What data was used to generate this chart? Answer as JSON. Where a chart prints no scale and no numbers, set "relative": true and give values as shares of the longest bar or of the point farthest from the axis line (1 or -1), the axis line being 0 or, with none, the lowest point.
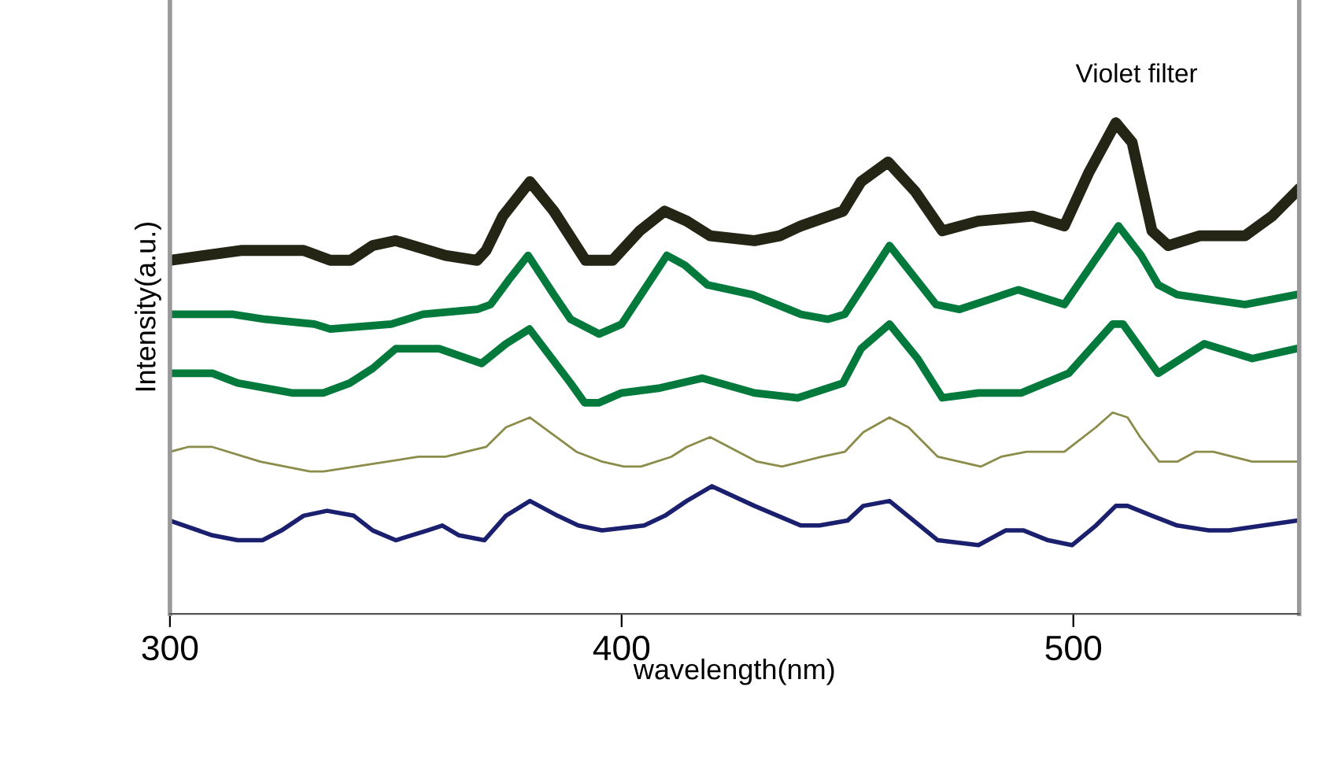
{
  "chart_data": {
    "type": "line",
    "xlabel": "wavelength(nm)",
    "ylabel": "Intensity(a.u.)",
    "annotations": [
      "Violet filter"
    ],
    "relative": true,
    "xlim": [
      300,
      550
    ],
    "xticks": [
      300,
      400,
      500
    ],
    "grid": false,
    "marker": "none",
    "line_style": "solid",
    "tick_labels": "x",
    "series": [
      {
        "color": "#252515",
        "x": [
          300,
          315.7,
          329.6,
          335.5,
          340,
          344.9,
          350,
          361,
          368,
          370,
          373.7,
          379.7,
          385,
          392,
          398,
          404,
          409.5,
          414.4,
          419.6,
          429.4,
          435,
          439.7,
          449,
          453,
          459,
          465,
          471,
          479,
          491,
          498,
          503.5,
          509.4,
          513,
          517.4,
          521,
          528,
          538,
          544,
          549.4
        ],
        "values": [
          0.72,
          0.74,
          0.74,
          0.72,
          0.72,
          0.75,
          0.76,
          0.73,
          0.72,
          0.74,
          0.81,
          0.88,
          0.82,
          0.72,
          0.72,
          0.78,
          0.82,
          0.8,
          0.77,
          0.76,
          0.77,
          0.79,
          0.82,
          0.88,
          0.92,
          0.86,
          0.78,
          0.8,
          0.81,
          0.79,
          0.9,
          1.0,
          0.96,
          0.78,
          0.75,
          0.77,
          0.77,
          0.81,
          0.86
        ]
      },
      {
        "color": "#037a3c",
        "x": [
          300,
          314,
          321,
          332,
          335.5,
          349,
          356,
          368,
          371,
          375,
          379.3,
          385,
          388.7,
          395,
          400,
          405,
          410,
          414,
          419,
          429,
          439.7,
          445.7,
          449.4,
          459.3,
          469.6,
          474.8,
          487.8,
          498,
          510,
          515,
          518.8,
          523,
          538,
          549.4
        ],
        "values": [
          0.61,
          0.61,
          0.6,
          0.59,
          0.58,
          0.59,
          0.61,
          0.62,
          0.63,
          0.68,
          0.73,
          0.65,
          0.6,
          0.57,
          0.59,
          0.66,
          0.73,
          0.71,
          0.67,
          0.65,
          0.61,
          0.6,
          0.61,
          0.75,
          0.63,
          0.62,
          0.66,
          0.63,
          0.79,
          0.73,
          0.67,
          0.65,
          0.63,
          0.65
        ]
      },
      {
        "color": "#037a3c",
        "x": [
          300,
          309.4,
          315,
          321,
          327,
          334,
          339.8,
          344.9,
          350,
          359.6,
          369,
          374.4,
          379.6,
          388.7,
          391.8,
          395,
          400,
          408.5,
          417.9,
          429.4,
          439,
          449,
          453,
          459.3,
          465.5,
          471,
          479,
          488.5,
          499,
          508.7,
          511,
          518.8,
          529,
          539.6,
          549.4
        ],
        "values": [
          0.49,
          0.49,
          0.47,
          0.46,
          0.45,
          0.45,
          0.47,
          0.5,
          0.54,
          0.54,
          0.51,
          0.55,
          0.58,
          0.47,
          0.43,
          0.43,
          0.45,
          0.46,
          0.48,
          0.45,
          0.44,
          0.47,
          0.54,
          0.59,
          0.52,
          0.44,
          0.45,
          0.45,
          0.49,
          0.59,
          0.59,
          0.49,
          0.55,
          0.52,
          0.54
        ]
      },
      {
        "color": "#8b8b4a",
        "x": [
          300,
          304,
          309.4,
          320,
          331,
          334,
          355,
          361,
          370,
          374.4,
          379.7,
          390,
          395.7,
          400.5,
          404.3,
          411,
          414.4,
          419.6,
          430,
          435.5,
          444.3,
          449.4,
          453.5,
          459.3,
          463.5,
          470,
          479.5,
          484,
          489.6,
          498,
          505,
          508.7,
          512,
          514.8,
          519,
          523,
          527,
          531,
          539.6,
          544,
          549.4
        ],
        "values": [
          0.33,
          0.34,
          0.34,
          0.31,
          0.29,
          0.29,
          0.32,
          0.32,
          0.34,
          0.38,
          0.4,
          0.33,
          0.31,
          0.3,
          0.3,
          0.32,
          0.34,
          0.36,
          0.31,
          0.3,
          0.32,
          0.33,
          0.37,
          0.4,
          0.38,
          0.32,
          0.3,
          0.32,
          0.33,
          0.33,
          0.38,
          0.41,
          0.4,
          0.36,
          0.31,
          0.31,
          0.33,
          0.33,
          0.31,
          0.31,
          0.31
        ]
      },
      {
        "color": "#1a1f6e",
        "x": [
          300,
          309.4,
          315,
          320.5,
          324.7,
          329.6,
          334.8,
          340.7,
          344.9,
          350,
          357,
          360.3,
          364,
          369.6,
          374.4,
          379.7,
          385.8,
          390.4,
          395.7,
          405,
          409.6,
          414.4,
          420,
          429.4,
          439.7,
          443.8,
          450,
          453.5,
          459.3,
          470,
          479,
          485,
          489,
          494.4,
          499.7,
          505,
          509.4,
          512,
          517.4,
          523,
          530,
          534.5,
          549.4
        ],
        "values": [
          0.19,
          0.16,
          0.15,
          0.15,
          0.17,
          0.2,
          0.21,
          0.2,
          0.17,
          0.15,
          0.17,
          0.18,
          0.16,
          0.15,
          0.2,
          0.23,
          0.2,
          0.18,
          0.17,
          0.18,
          0.2,
          0.23,
          0.26,
          0.22,
          0.18,
          0.18,
          0.19,
          0.22,
          0.23,
          0.15,
          0.14,
          0.17,
          0.17,
          0.15,
          0.14,
          0.18,
          0.22,
          0.22,
          0.2,
          0.18,
          0.17,
          0.17,
          0.19
        ]
      }
    ]
  }
}
